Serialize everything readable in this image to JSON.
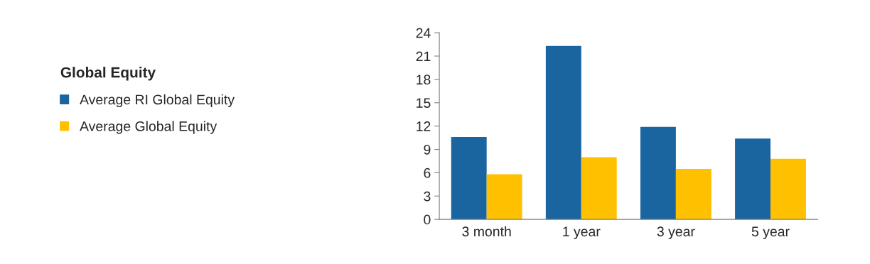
{
  "chart_data": {
    "type": "bar",
    "categories": [
      "3 month",
      "1 year",
      "3 year",
      "5 year"
    ],
    "series": [
      {
        "name": "Average RI Global Equity",
        "color": "#1a64a0",
        "values": [
          10.6,
          22.3,
          11.9,
          10.4
        ]
      },
      {
        "name": "Average Global Equity",
        "color": "#ffc000",
        "values": [
          5.8,
          8.0,
          6.5,
          7.8
        ]
      }
    ],
    "legend_title": "Global Equity",
    "ylim": [
      0,
      24
    ],
    "yticks": [
      0,
      3,
      6,
      9,
      12,
      15,
      18,
      21,
      24
    ],
    "grid": false,
    "legend": "left"
  }
}
